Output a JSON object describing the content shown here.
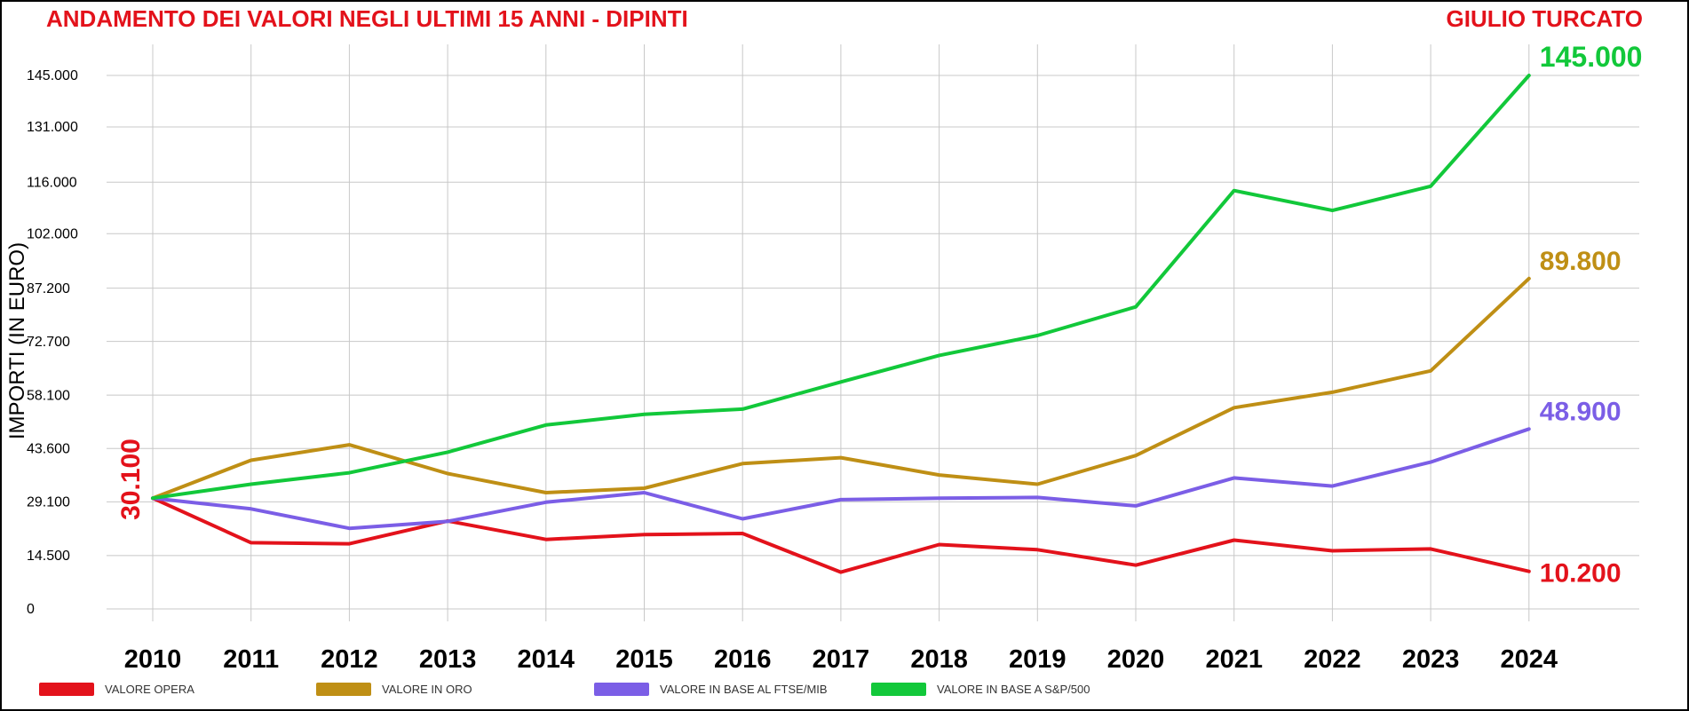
{
  "header": {
    "title": "ANDAMENTO DEI VALORI NEGLI ULTIMI 15 ANNI - DIPINTI",
    "artist": "GIULIO TURCATO"
  },
  "chart_data": {
    "type": "line",
    "title": "ANDAMENTO DEI VALORI NEGLI ULTIMI 15 ANNI - DIPINTI",
    "ylabel": "IMPORTI (IN EURO)",
    "xlabel": "",
    "x": [
      "2010",
      "2011",
      "2012",
      "2013",
      "2014",
      "2015",
      "2016",
      "2017",
      "2018",
      "2019",
      "2020",
      "2021",
      "2022",
      "2023",
      "2024"
    ],
    "yticks": [
      0,
      14500,
      29100,
      43600,
      58100,
      72700,
      87200,
      102000,
      116000,
      131000,
      145000
    ],
    "ytick_labels": [
      "0",
      "14.500",
      "29.100",
      "43.600",
      "58.100",
      "72.700",
      "87.200",
      "102.000",
      "116.000",
      "131.000",
      "145.000"
    ],
    "ylim": [
      0,
      145000
    ],
    "grid": true,
    "legend_position": "bottom",
    "series": [
      {
        "name": "VALORE OPERA",
        "color": "#e3121b",
        "values": [
          30100,
          18000,
          17700,
          23900,
          18900,
          20200,
          20500,
          10000,
          17500,
          16100,
          11900,
          18700,
          15800,
          16300,
          10200
        ]
      },
      {
        "name": "VALORE IN ORO",
        "color": "#bf8f15",
        "values": [
          30100,
          40400,
          44600,
          36800,
          31600,
          32800,
          39500,
          41100,
          36400,
          33900,
          41700,
          54700,
          58900,
          64700,
          89800
        ]
      },
      {
        "name": "VALORE IN BASE AL FTSE/MIB",
        "color": "#7b5ee6",
        "values": [
          30100,
          27200,
          21900,
          23800,
          29000,
          31600,
          24500,
          29700,
          30100,
          30300,
          28000,
          35600,
          33400,
          39900,
          48900
        ]
      },
      {
        "name": "VALORE IN BASE A S&P/500",
        "color": "#12c83a",
        "values": [
          30100,
          33900,
          37000,
          42600,
          50000,
          52900,
          54300,
          61700,
          68900,
          74300,
          82100,
          113700,
          108300,
          114900,
          145000
        ]
      }
    ],
    "annotations": [
      {
        "text": "30.100",
        "color": "#e3121b",
        "anchor": "start-vertical"
      },
      {
        "text": "145.000",
        "color": "#12c83a",
        "anchor": "end",
        "series": 3
      },
      {
        "text": "89.800",
        "color": "#bf8f15",
        "anchor": "end",
        "series": 1
      },
      {
        "text": "48.900",
        "color": "#7b5ee6",
        "anchor": "end",
        "series": 2
      },
      {
        "text": "10.200",
        "color": "#e3121b",
        "anchor": "end",
        "series": 0
      }
    ]
  }
}
